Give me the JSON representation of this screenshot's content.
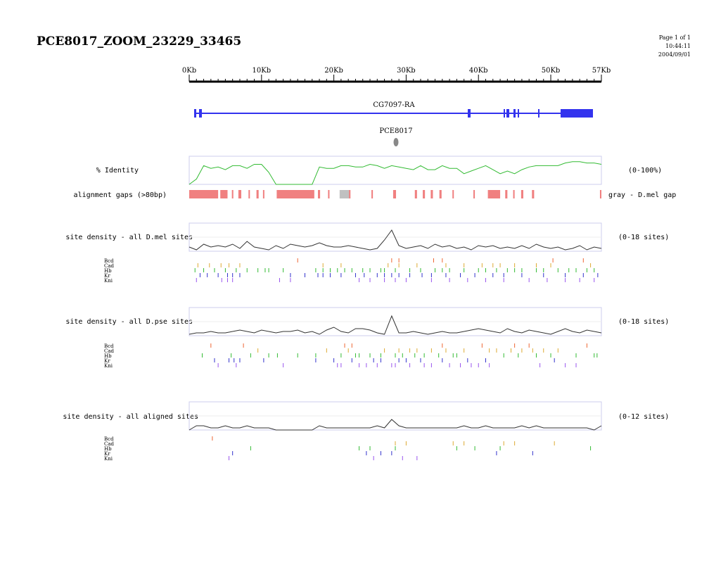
{
  "header": {
    "title": "PCE8017_ZOOM_23229_33465",
    "page": "Page 1 of 1",
    "time": "10:44:11",
    "date": "2004/09/01"
  },
  "ruler": {
    "ticks": [
      "0Kb",
      "10Kb",
      "20Kb",
      "30Kb",
      "40Kb",
      "50Kb",
      "57Kb"
    ]
  },
  "gene": {
    "name": "CG7097-RA",
    "color": "#3333ee"
  },
  "element": {
    "name": "PCE8017"
  },
  "tracks": {
    "identity": {
      "label": "% Identity",
      "range": "(0-100%)",
      "color": "#33bb33"
    },
    "gaps": {
      "label": "alignment gaps (>80bp)",
      "note": "gray - D.mel gap",
      "color": "#f08080",
      "gray": "#c0c0c0"
    },
    "dmel": {
      "label": "site density - all D.mel sites",
      "range": "(0-18 sites)"
    },
    "dpse": {
      "label": "site density - all D.pse sites",
      "range": "(0-18 sites)"
    },
    "aligned": {
      "label": "site density - all aligned sites",
      "range": "(0-12 sites)"
    }
  },
  "factors": {
    "names": [
      "Bcd",
      "Cad",
      "Hb",
      "Kr",
      "Kni"
    ],
    "colors": [
      "#ee6633",
      "#ddaa33",
      "#33bb33",
      "#3333cc",
      "#9955ee"
    ]
  },
  "chart_data": [
    {
      "type": "line",
      "title": "% Identity",
      "range_label": "(0-100%)",
      "xlim": [
        0,
        57
      ],
      "ylim": [
        0,
        100
      ],
      "x": [
        0,
        1,
        2,
        3,
        4,
        5,
        6,
        7,
        8,
        9,
        10,
        11,
        12,
        13,
        14,
        15,
        16,
        17,
        18,
        19,
        20,
        21,
        22,
        23,
        24,
        25,
        26,
        27,
        28,
        29,
        30,
        31,
        32,
        33,
        34,
        35,
        36,
        37,
        38,
        39,
        40,
        41,
        42,
        43,
        44,
        45,
        46,
        47,
        48,
        49,
        50,
        51,
        52,
        53,
        54,
        55,
        56,
        57
      ],
      "values": [
        0,
        20,
        70,
        60,
        65,
        55,
        70,
        70,
        60,
        75,
        75,
        45,
        0,
        0,
        0,
        0,
        0,
        0,
        65,
        60,
        60,
        70,
        70,
        65,
        65,
        75,
        70,
        60,
        70,
        65,
        60,
        55,
        70,
        55,
        55,
        70,
        60,
        60,
        40,
        50,
        60,
        70,
        55,
        40,
        50,
        40,
        55,
        65,
        70,
        70,
        70,
        70,
        80,
        85,
        85,
        80,
        80,
        75
      ]
    },
    {
      "type": "bar",
      "title": "alignment gaps (>80bp)",
      "xlim": [
        0,
        57
      ],
      "gaps_kb": [
        [
          0,
          4
        ],
        [
          4.3,
          5.3
        ],
        [
          5.9,
          6.1
        ],
        [
          6.8,
          7.2
        ],
        [
          8.2,
          8.3
        ],
        [
          9.3,
          9.6
        ],
        [
          10.2,
          10.3
        ],
        [
          12.1,
          17.3
        ],
        [
          17.8,
          18.1
        ],
        [
          19.2,
          19.4
        ],
        [
          21,
          22.3
        ],
        [
          25.2,
          25.4
        ],
        [
          28.2,
          28.6
        ],
        [
          31.2,
          31.5
        ],
        [
          32.3,
          32.6
        ],
        [
          33.4,
          33.7
        ],
        [
          34.6,
          34.9
        ],
        [
          36.4,
          36.5
        ],
        [
          39.3,
          39.5
        ],
        [
          41.3,
          43
        ],
        [
          43.7,
          44
        ],
        [
          44.8,
          45
        ],
        [
          45.9,
          46.2
        ],
        [
          47.4,
          47.7
        ],
        [
          56.8,
          57
        ]
      ],
      "gray_gaps_kb": [
        [
          20.8,
          22.1
        ]
      ]
    },
    {
      "type": "line",
      "title": "site density - all D.mel sites",
      "range_label": "(0-18 sites)",
      "xlim": [
        0,
        57
      ],
      "ylim": [
        0,
        18
      ],
      "values": [
        3,
        1,
        5,
        3,
        4,
        3,
        5,
        2,
        7,
        3,
        2,
        1,
        4,
        2,
        5,
        4,
        3,
        4,
        6,
        4,
        3,
        3,
        4,
        3,
        2,
        1,
        2,
        8,
        15,
        4,
        2,
        3,
        4,
        2,
        5,
        3,
        4,
        2,
        3,
        1,
        4,
        3,
        4,
        2,
        3,
        2,
        4,
        2,
        5,
        3,
        2,
        3,
        1,
        2,
        4,
        1,
        3,
        2
      ],
      "ticks_kb": {
        "Bcd": [
          15,
          28,
          29,
          33.8,
          35,
          50.3,
          54.5
        ],
        "Cad": [
          1.2,
          2.8,
          4.4,
          5.5,
          7,
          18.5,
          21,
          27.5,
          29,
          31.5,
          35.5,
          38,
          40.5,
          42,
          43,
          45,
          48,
          50,
          55.5
        ],
        "Hb": [
          0.8,
          2,
          3.5,
          5,
          6.5,
          8,
          9.5,
          10.5,
          11,
          13,
          17.5,
          18.5,
          19.5,
          20.5,
          21.5,
          22.5,
          24,
          25,
          26.5,
          27,
          28.5,
          30.5,
          32,
          34,
          35,
          36,
          38,
          40,
          41,
          42.5,
          44,
          45,
          46,
          48,
          49,
          51,
          52.5,
          53.5,
          55,
          56
        ],
        "Kr": [
          1.5,
          2.5,
          4,
          5.3,
          6,
          7,
          14,
          16,
          17.8,
          18.5,
          19.5,
          21,
          23,
          24.2,
          26,
          27,
          28,
          29,
          30.5,
          32.2,
          33.5,
          35.5,
          37.5,
          39.5,
          42,
          43.5,
          46,
          49,
          52,
          54.5,
          56.5
        ],
        "Kni": [
          1,
          4.5,
          5.3,
          6,
          12.5,
          14,
          23.5,
          25,
          27,
          28.5,
          30,
          33.5,
          36,
          38.5,
          41,
          43.5,
          47,
          49.5,
          52,
          54,
          56
        ]
      }
    },
    {
      "type": "line",
      "title": "site density - all D.pse sites",
      "range_label": "(0-18 sites)",
      "xlim": [
        0,
        57
      ],
      "ylim": [
        0,
        18
      ],
      "values": [
        1,
        2,
        2,
        3,
        2,
        2,
        3,
        4,
        3,
        2,
        4,
        3,
        2,
        3,
        3,
        4,
        2,
        3,
        1,
        4,
        6,
        3,
        2,
        5,
        5,
        4,
        2,
        1,
        14,
        2,
        2,
        3,
        2,
        1,
        2,
        3,
        2,
        2,
        3,
        4,
        5,
        4,
        3,
        2,
        5,
        3,
        2,
        4,
        3,
        2,
        1,
        3,
        5,
        3,
        2,
        4,
        3,
        2
      ],
      "ticks_kb": {
        "Bcd": [
          3,
          7.5,
          21.5,
          22.5,
          35,
          40.5,
          45,
          47,
          55
        ],
        "Cad": [
          9.5,
          19,
          22,
          27,
          29,
          30.5,
          31.5,
          33.5,
          35.5,
          38,
          41.5,
          42.5,
          44.5,
          46,
          47.5,
          49,
          51
        ],
        "Hb": [
          1.8,
          5.8,
          8.5,
          11,
          12.2,
          15,
          17.5,
          21,
          23,
          23.5,
          25,
          26.5,
          28.5,
          29.5,
          31.2,
          32.5,
          34.5,
          36.5,
          37,
          43.5,
          45.5,
          48,
          50,
          53.5,
          56,
          56.4
        ],
        "Kr": [
          3.5,
          5.5,
          6.2,
          7,
          10.3,
          17.5,
          20,
          22.5,
          25.5,
          26.5,
          29,
          30,
          32,
          35,
          38.5,
          41,
          50.5
        ],
        "Kni": [
          4,
          6.5,
          13,
          20.5,
          21,
          23.5,
          24.5,
          26,
          28,
          28.5,
          30.5,
          32.5,
          33.5,
          36,
          37.5,
          39,
          40,
          41.5,
          48.5,
          52,
          53.5
        ]
      }
    },
    {
      "type": "line",
      "title": "site density - all aligned sites",
      "range_label": "(0-12 sites)",
      "xlim": [
        0,
        57
      ],
      "ylim": [
        0,
        12
      ],
      "values": [
        0,
        2,
        2,
        1,
        1,
        2,
        1,
        1,
        2,
        1,
        1,
        1,
        0,
        0,
        0,
        0,
        0,
        0,
        2,
        1,
        1,
        1,
        1,
        1,
        1,
        1,
        2,
        1,
        5,
        2,
        1,
        1,
        1,
        1,
        1,
        1,
        1,
        1,
        2,
        1,
        1,
        2,
        1,
        1,
        1,
        1,
        2,
        1,
        2,
        1,
        1,
        1,
        1,
        1,
        1,
        1,
        0,
        2
      ],
      "ticks_kb": {
        "Bcd": [
          3.2
        ],
        "Cad": [
          28.5,
          30,
          36.5,
          38,
          43.5,
          45,
          50.5
        ],
        "Hb": [
          8.5,
          23.5,
          25,
          28.5,
          37,
          39.5,
          43,
          55.5
        ],
        "Kr": [
          6,
          24.5,
          26.5,
          28,
          42.5,
          47.5
        ],
        "Kni": [
          5.5,
          25.5,
          29.5,
          31.5
        ]
      }
    }
  ]
}
